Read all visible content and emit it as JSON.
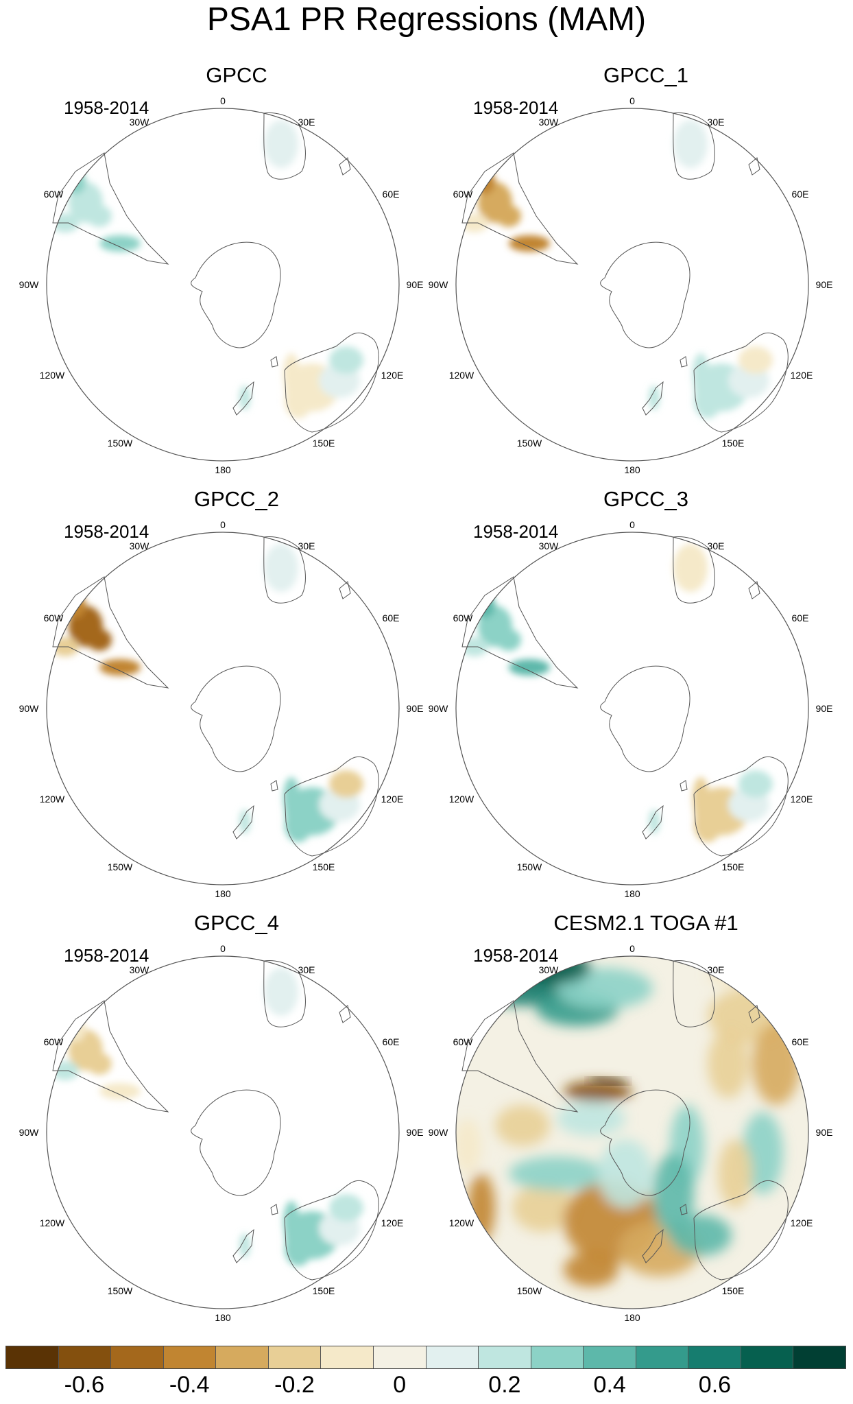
{
  "title": "PSA1 PR Regressions (MAM)",
  "panels": [
    {
      "title": "GPCC",
      "period": "1958-2014",
      "style": "obs",
      "variant": 0
    },
    {
      "title": "GPCC_1",
      "period": "1958-2014",
      "style": "obs",
      "variant": 1
    },
    {
      "title": "GPCC_2",
      "period": "1958-2014",
      "style": "obs",
      "variant": 2
    },
    {
      "title": "GPCC_3",
      "period": "1958-2014",
      "style": "obs",
      "variant": 3
    },
    {
      "title": "GPCC_4",
      "period": "1958-2014",
      "style": "obs",
      "variant": 4
    },
    {
      "title": "CESM2.1 TOGA #1",
      "period": "1958-2014",
      "style": "model",
      "variant": 5
    }
  ],
  "longitude_labels": {
    "top": "0",
    "bottom": "180",
    "30W": "30W",
    "30E": "30E",
    "60W": "60W",
    "60E": "60E",
    "90W": "90W",
    "90E": "90E",
    "120W": "120W",
    "120E": "120E",
    "150W": "150W",
    "150E": "150E"
  },
  "colorbar": {
    "colors": [
      "#5a3305",
      "#84500e",
      "#a4681c",
      "#c18531",
      "#d6aa5e",
      "#e8cf96",
      "#f5e9c9",
      "#f4f1e4",
      "#e2f0ef",
      "#bfe6e0",
      "#8cd2c6",
      "#5db8aa",
      "#349b8c",
      "#167d6f",
      "#06604f",
      "#013f33"
    ],
    "labels": [
      "-0.6",
      "-0.4",
      "-0.2",
      "0",
      "0.2",
      "0.4",
      "0.6"
    ]
  }
}
